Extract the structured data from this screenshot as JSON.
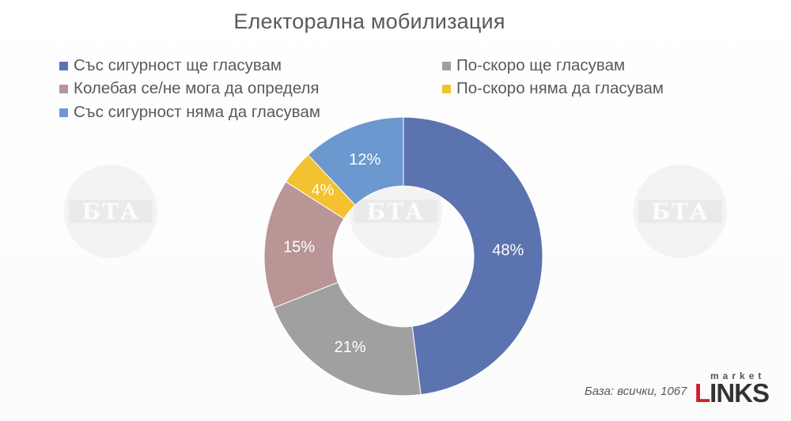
{
  "watermark": {
    "text": "БТА"
  },
  "chart_data": {
    "type": "pie",
    "donut": true,
    "title": "Електорална мобилизация",
    "categories": [
      "Със сигурност ще гласувам",
      "По-скоро ще гласувам",
      "Колебая се/не мога да определя",
      "По-скоро няма да гласувам",
      "Със сигурност няма да гласувам"
    ],
    "values": [
      48,
      21,
      15,
      4,
      12
    ],
    "data_labels": [
      "48%",
      "21%",
      "15%",
      "4%",
      "12%"
    ],
    "colors": [
      "#5b74b0",
      "#a0a0a0",
      "#b99595",
      "#f4c130",
      "#6b98cf"
    ],
    "legend_position": "top",
    "legend": [
      {
        "label": "Със сигурност ще гласувам",
        "color": "#5b74b0"
      },
      {
        "label": "По-скоро ще гласувам",
        "color": "#a0a0a0"
      },
      {
        "label": "Колебая се/не мога да определя",
        "color": "#b99595"
      },
      {
        "label": "По-скоро няма да гласувам",
        "color": "#f4c130"
      },
      {
        "label": "Със сигурност няма да гласувам",
        "color": "#6b98cf"
      }
    ]
  },
  "footer": {
    "base_note": "База: всички, 1067",
    "logo_small": "market",
    "logo_big_first": "L",
    "logo_big_rest": "INKS"
  }
}
